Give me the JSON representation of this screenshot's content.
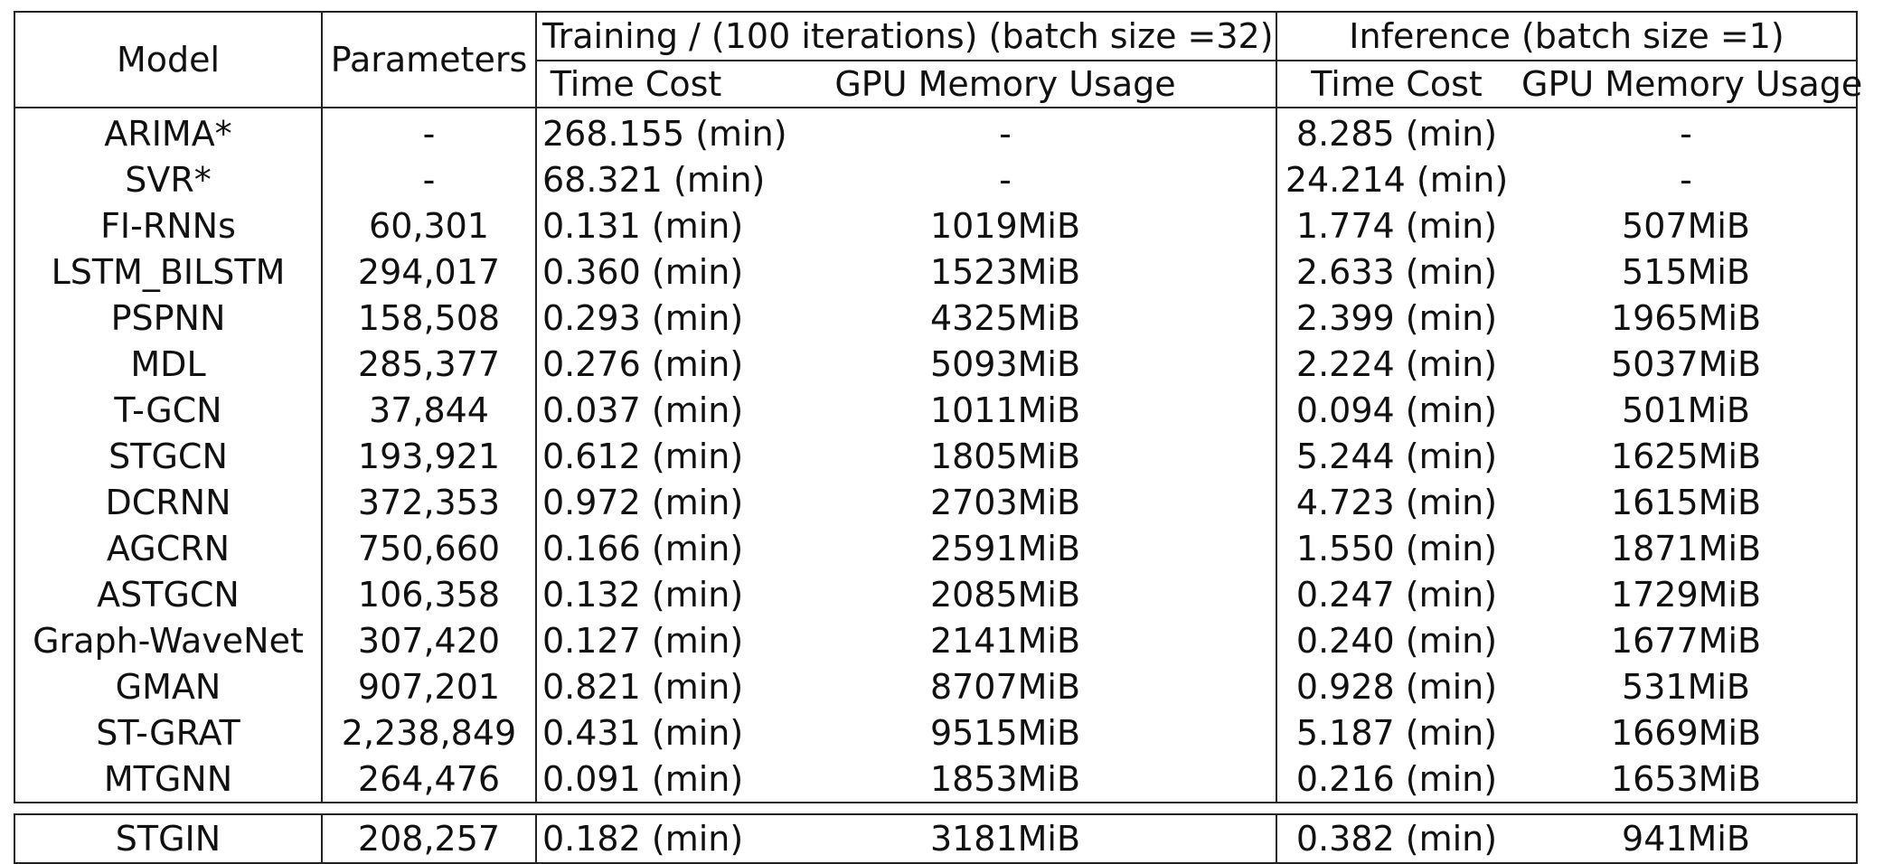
{
  "headers": {
    "model": "Model",
    "parameters": "Parameters",
    "training_group": "Training / (100 iterations) (batch size =32)",
    "inference_group": "Inference (batch size =1)",
    "time_cost": "Time Cost",
    "gpu_memory": "GPU Memory Usage"
  },
  "rows": [
    {
      "model": "ARIMA*",
      "params": "-",
      "train_time": "268.155 (min)",
      "train_gpu": "-",
      "inf_time": "8.285 (min)",
      "inf_gpu": "-"
    },
    {
      "model": "SVR*",
      "params": "-",
      "train_time": "68.321 (min)",
      "train_gpu": "-",
      "inf_time": "24.214 (min)",
      "inf_gpu": "-"
    },
    {
      "model": "FI-RNNs",
      "params": "60,301",
      "train_time": "0.131 (min)",
      "train_gpu": "1019MiB",
      "inf_time": "1.774 (min)",
      "inf_gpu": "507MiB"
    },
    {
      "model": "LSTM_BILSTM",
      "params": "294,017",
      "train_time": "0.360 (min)",
      "train_gpu": "1523MiB",
      "inf_time": "2.633 (min)",
      "inf_gpu": "515MiB"
    },
    {
      "model": "PSPNN",
      "params": "158,508",
      "train_time": "0.293 (min)",
      "train_gpu": "4325MiB",
      "inf_time": "2.399 (min)",
      "inf_gpu": "1965MiB"
    },
    {
      "model": "MDL",
      "params": "285,377",
      "train_time": "0.276 (min)",
      "train_gpu": "5093MiB",
      "inf_time": "2.224 (min)",
      "inf_gpu": "5037MiB"
    },
    {
      "model": "T-GCN",
      "params": "37,844",
      "train_time": "0.037 (min)",
      "train_gpu": "1011MiB",
      "inf_time": "0.094 (min)",
      "inf_gpu": "501MiB"
    },
    {
      "model": "STGCN",
      "params": "193,921",
      "train_time": "0.612 (min)",
      "train_gpu": "1805MiB",
      "inf_time": "5.244 (min)",
      "inf_gpu": "1625MiB"
    },
    {
      "model": "DCRNN",
      "params": "372,353",
      "train_time": "0.972 (min)",
      "train_gpu": "2703MiB",
      "inf_time": "4.723 (min)",
      "inf_gpu": "1615MiB"
    },
    {
      "model": "AGCRN",
      "params": "750,660",
      "train_time": "0.166 (min)",
      "train_gpu": "2591MiB",
      "inf_time": "1.550 (min)",
      "inf_gpu": "1871MiB"
    },
    {
      "model": "ASTGCN",
      "params": "106,358",
      "train_time": "0.132 (min)",
      "train_gpu": "2085MiB",
      "inf_time": "0.247 (min)",
      "inf_gpu": "1729MiB"
    },
    {
      "model": "Graph-WaveNet",
      "params": "307,420",
      "train_time": "0.127 (min)",
      "train_gpu": "2141MiB",
      "inf_time": "0.240 (min)",
      "inf_gpu": "1677MiB"
    },
    {
      "model": "GMAN",
      "params": "907,201",
      "train_time": "0.821 (min)",
      "train_gpu": "8707MiB",
      "inf_time": "0.928 (min)",
      "inf_gpu": "531MiB"
    },
    {
      "model": "ST-GRAT",
      "params": "2,238,849",
      "train_time": "0.431 (min)",
      "train_gpu": "9515MiB",
      "inf_time": "5.187 (min)",
      "inf_gpu": "1669MiB"
    },
    {
      "model": "MTGNN",
      "params": "264,476",
      "train_time": "0.091 (min)",
      "train_gpu": "1853MiB",
      "inf_time": "0.216 (min)",
      "inf_gpu": "1653MiB"
    }
  ],
  "final_row": {
    "model": "STGIN",
    "params": "208,257",
    "train_time": "0.182 (min)",
    "train_gpu": "3181MiB",
    "inf_time": "0.382 (min)",
    "inf_gpu": "941MiB"
  }
}
